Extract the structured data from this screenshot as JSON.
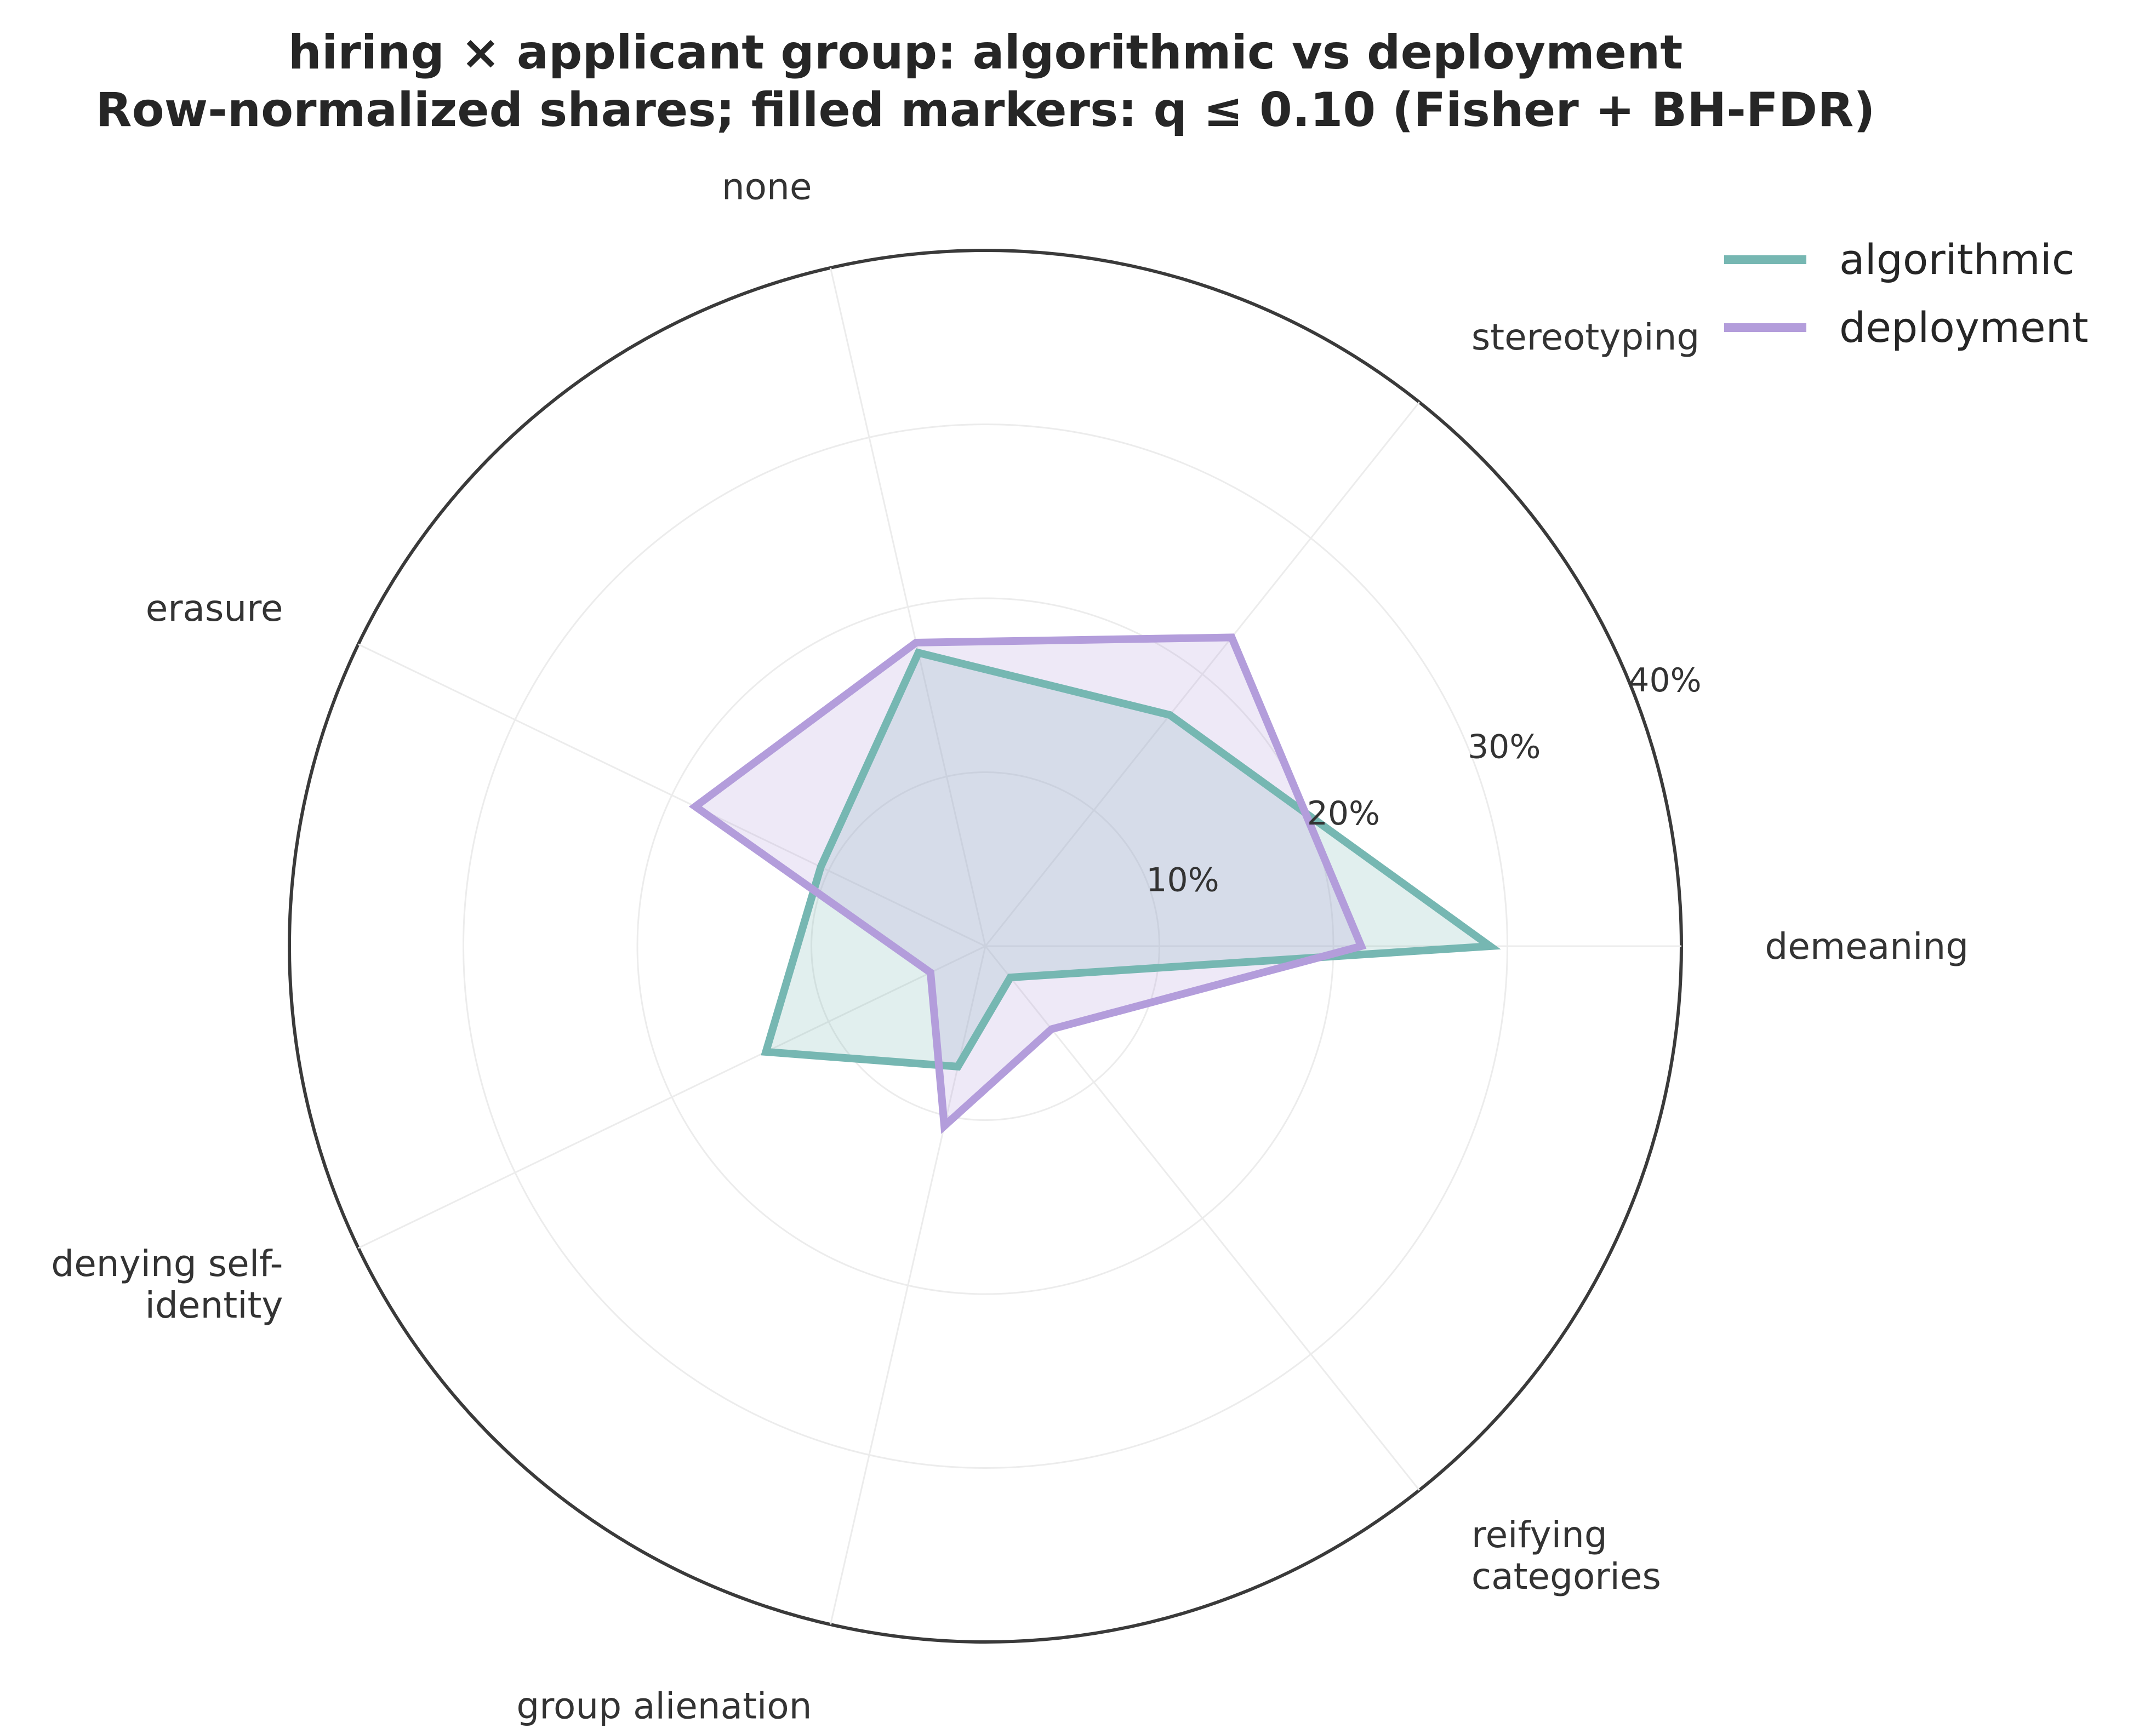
{
  "chart_data": {
    "type": "radar",
    "title": "hiring × applicant group: algorithmic vs deployment",
    "subtitle": "Row-normalized shares; filled markers: q ≤ 0.10 (Fisher + BH-FDR)",
    "categories": [
      "demeaning",
      "stereotyping",
      "none",
      "erasure",
      "denying self-identity",
      "group alienation",
      "reifying categories"
    ],
    "category_label_lines": [
      [
        "demeaning"
      ],
      [
        "stereotyping"
      ],
      [
        "none"
      ],
      [
        "erasure"
      ],
      [
        "denying self-",
        "identity"
      ],
      [
        "group alienation"
      ],
      [
        "reifying",
        "categories"
      ]
    ],
    "series": [
      {
        "name": "algorithmic",
        "color": "#76b7b2",
        "values": [
          29.0,
          17.0,
          17.3,
          10.5,
          14.0,
          7.1,
          2.3
        ]
      },
      {
        "name": "deployment",
        "color": "#b39ddb",
        "values": [
          21.6,
          22.7,
          17.9,
          18.5,
          3.5,
          10.6,
          6.1
        ]
      }
    ],
    "r_ticks": [
      10,
      20,
      30,
      40
    ],
    "r_tick_labels": [
      "10%",
      "20%",
      "30%",
      "40%"
    ],
    "r_max": 40,
    "grid": true,
    "legend_position": "top-right"
  }
}
